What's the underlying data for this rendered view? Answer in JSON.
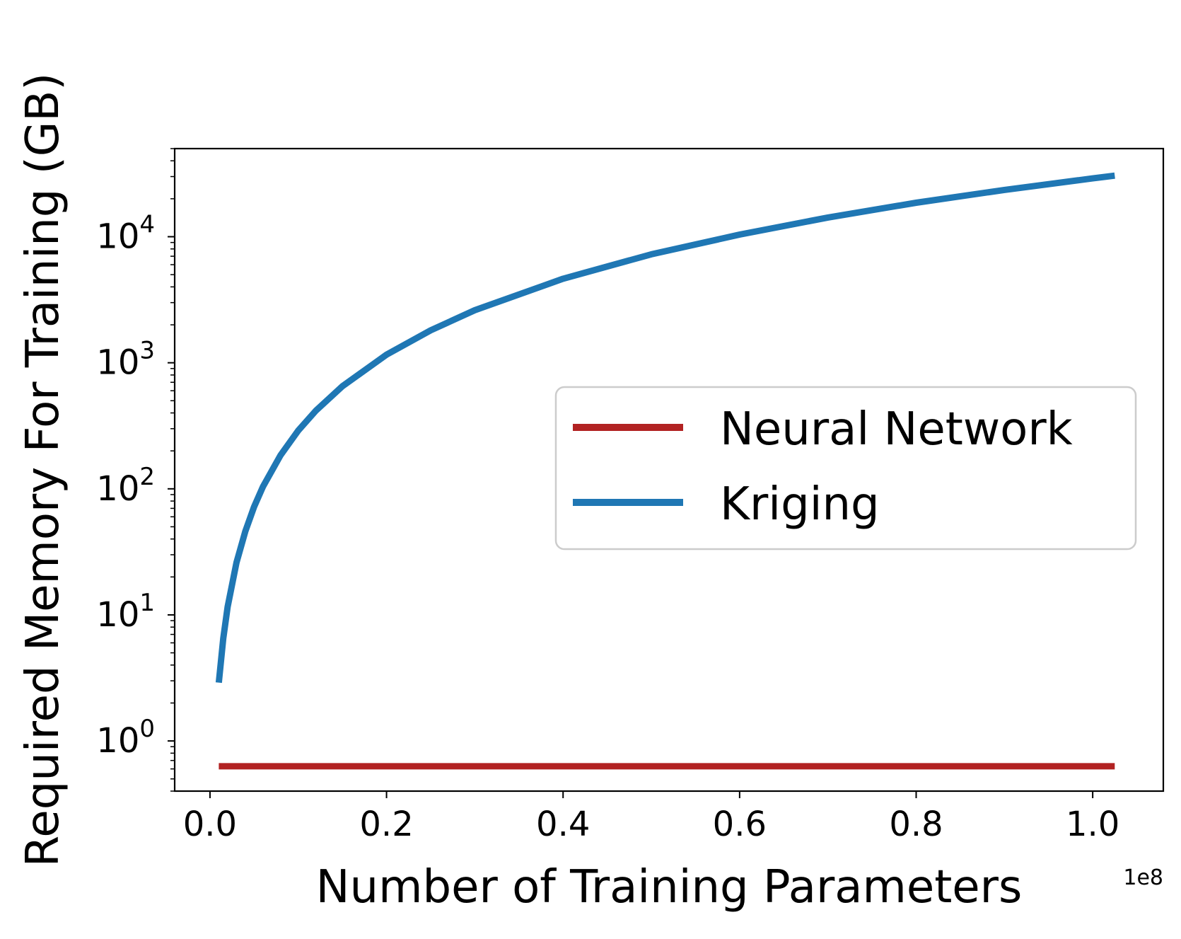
{
  "chart_data": {
    "type": "line",
    "title": "",
    "xlabel": "Number of Training Parameters",
    "ylabel": "Required Memory For Training (GB)",
    "x_offset_label": "1e8",
    "xlim": [
      -0.04,
      1.08
    ],
    "ylim": [
      0.4,
      50000
    ],
    "yscale": "log",
    "grid": false,
    "legend_position": "center-right",
    "x_ticks": [
      {
        "value": 0.0,
        "label": "0.0"
      },
      {
        "value": 0.2,
        "label": "0.2"
      },
      {
        "value": 0.4,
        "label": "0.4"
      },
      {
        "value": 0.6,
        "label": "0.6"
      },
      {
        "value": 0.8,
        "label": "0.8"
      },
      {
        "value": 1.0,
        "label": "1.0"
      }
    ],
    "y_ticks": [
      {
        "value": 1,
        "base": "10",
        "exponent": "0"
      },
      {
        "value": 10,
        "base": "10",
        "exponent": "1"
      },
      {
        "value": 100,
        "base": "10",
        "exponent": "2"
      },
      {
        "value": 1000,
        "base": "10",
        "exponent": "3"
      },
      {
        "value": 10000,
        "base": "10",
        "exponent": "4"
      }
    ],
    "series": [
      {
        "name": "Neural Network",
        "color": "#b22222",
        "x": [
          0.01,
          1.025
        ],
        "y": [
          0.63,
          0.63
        ]
      },
      {
        "name": "Kriging",
        "color": "#1f77b4",
        "x": [
          0.01,
          0.015,
          0.02,
          0.03,
          0.04,
          0.05,
          0.06,
          0.08,
          0.1,
          0.12,
          0.15,
          0.2,
          0.25,
          0.3,
          0.4,
          0.5,
          0.6,
          0.7,
          0.8,
          0.9,
          1.0,
          1.025
        ],
        "y": [
          2.9,
          6.5,
          11.6,
          26,
          46,
          72,
          104,
          185,
          290,
          417,
          652,
          1160,
          1810,
          2610,
          4640,
          7250,
          10400,
          14200,
          18600,
          23500,
          29000,
          30500
        ]
      }
    ]
  }
}
